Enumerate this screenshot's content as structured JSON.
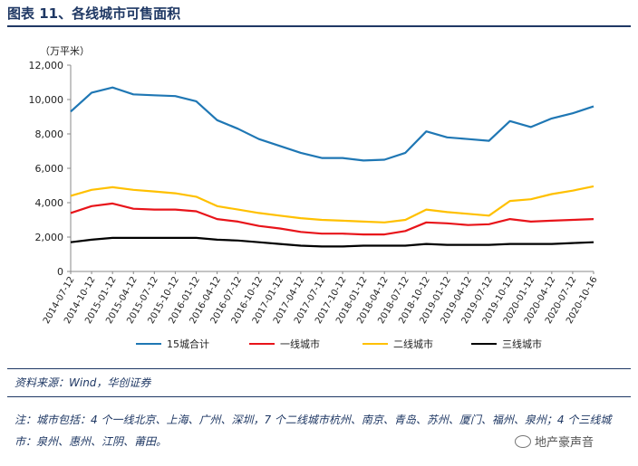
{
  "title": "图表 11、各线城市可售面积",
  "unit": "（万平米）",
  "source": "资料来源：Wind，华创证券",
  "note": "注：城市包括：4 个一线北京、上海、广州、深圳，7 个二线城市杭州、南京、青岛、苏州、厦门、福州、泉州；4 个三线城市：泉州、惠州、江阴、莆田。",
  "watermark": "地产豪声音",
  "chart_data": {
    "type": "line",
    "ylim": [
      0,
      12000
    ],
    "yticks": [
      0,
      2000,
      4000,
      6000,
      8000,
      10000,
      12000
    ],
    "ytick_labels": [
      "0",
      "2,000",
      "4,000",
      "6,000",
      "8,000",
      "10,000",
      "12,000"
    ],
    "grid": false,
    "legend_placement": "bottom",
    "x_tick_labels": [
      "2014-07-12",
      "2014-10-12",
      "2015-01-12",
      "2015-04-12",
      "2015-07-12",
      "2015-10-12",
      "2016-01-12",
      "2016-04-12",
      "2016-07-12",
      "2016-10-12",
      "2017-01-12",
      "2017-04-12",
      "2017-07-12",
      "2017-10-12",
      "2018-01-12",
      "2018-04-12",
      "2018-07-12",
      "2018-10-12",
      "2019-01-12",
      "2019-04-12",
      "2019-07-12",
      "2019-10-12",
      "2020-01-12",
      "2020-04-12",
      "2020-07-12",
      "2020-10-16"
    ],
    "x_tick_pos": [
      0,
      1,
      2,
      3,
      4,
      5,
      6,
      7,
      8,
      9,
      10,
      11,
      12,
      13,
      14,
      15,
      16,
      17,
      18,
      19,
      20,
      21,
      22,
      23,
      24,
      25
    ],
    "x_range": [
      0,
      25
    ],
    "x": [
      0,
      1,
      2,
      3,
      4,
      5,
      6,
      7,
      8,
      9,
      10,
      11,
      12,
      13,
      14,
      15,
      16,
      17,
      18,
      19,
      20,
      21,
      22,
      23,
      24,
      25
    ],
    "series": [
      {
        "name": "15城合计",
        "color": "#1f77b4",
        "values": [
          9300,
          10400,
          10700,
          10300,
          10250,
          10200,
          9900,
          8800,
          8300,
          7700,
          7300,
          6900,
          6600,
          6600,
          6450,
          6500,
          6900,
          8150,
          7800,
          7700,
          7600,
          8750,
          8400,
          8900,
          9200,
          9600
        ]
      },
      {
        "name": "一线城市",
        "color": "#e8141a",
        "values": [
          3400,
          3800,
          3950,
          3650,
          3600,
          3600,
          3500,
          3050,
          2900,
          2650,
          2500,
          2300,
          2200,
          2200,
          2150,
          2150,
          2350,
          2850,
          2800,
          2700,
          2750,
          3050,
          2900,
          2950,
          3000,
          3050
        ]
      },
      {
        "name": "二线城市",
        "color": "#ffc000",
        "values": [
          4400,
          4750,
          4900,
          4750,
          4650,
          4550,
          4350,
          3800,
          3600,
          3400,
          3250,
          3100,
          3000,
          2950,
          2900,
          2850,
          3000,
          3600,
          3450,
          3350,
          3250,
          4100,
          4200,
          4500,
          4700,
          4950
        ]
      },
      {
        "name": "三线城市",
        "color": "#000000",
        "values": [
          1700,
          1850,
          1950,
          1950,
          1950,
          1950,
          1950,
          1850,
          1800,
          1700,
          1600,
          1500,
          1450,
          1450,
          1500,
          1500,
          1500,
          1600,
          1550,
          1550,
          1550,
          1600,
          1600,
          1600,
          1650,
          1700
        ]
      }
    ]
  }
}
